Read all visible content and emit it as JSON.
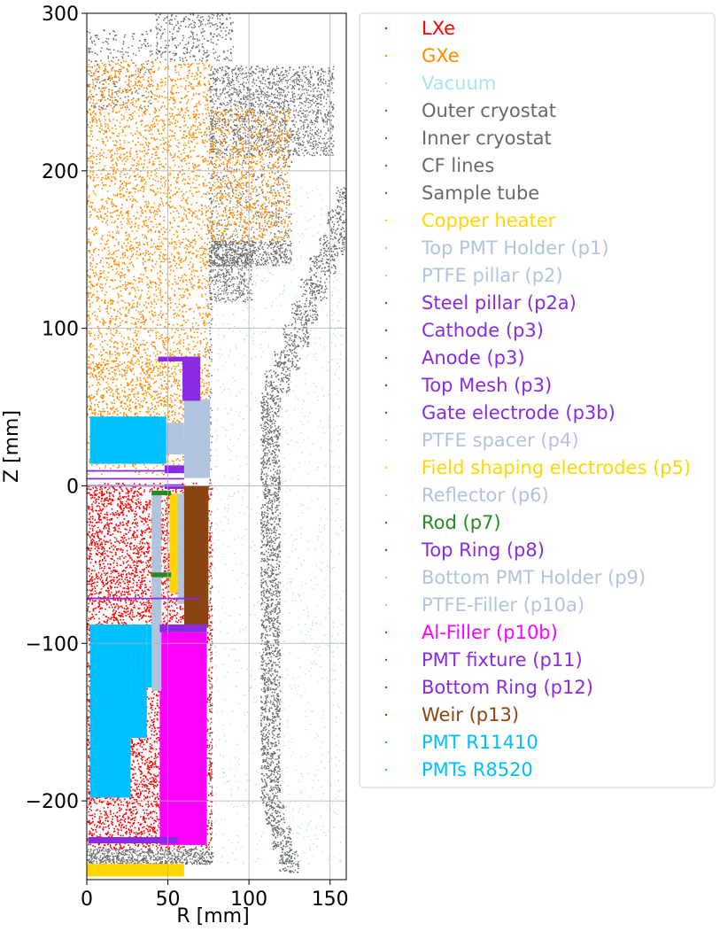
{
  "chart_data": {
    "type": "scatter",
    "title": "",
    "xlabel": "R [mm]",
    "ylabel": "Z [mm]",
    "xlim": [
      0,
      160
    ],
    "ylim": [
      -250,
      300
    ],
    "xticks": [
      0,
      50,
      100,
      150
    ],
    "yticks": [
      -200,
      -100,
      0,
      100,
      200,
      300
    ],
    "xtick_labels": [
      "0",
      "50",
      "100",
      "150"
    ],
    "ytick_labels": [
      "−200",
      "−100",
      "0",
      "100",
      "200",
      "300"
    ],
    "grid": true,
    "legend_placement": "right",
    "series": [
      {
        "name": "LXe",
        "color": "#ff0000"
      },
      {
        "name": "GXe",
        "color": "#ff8c00"
      },
      {
        "name": "Vacuum",
        "color": "#a8e4e8"
      },
      {
        "name": "Outer cryostat",
        "color": "#696969"
      },
      {
        "name": "Inner cryostat",
        "color": "#696969"
      },
      {
        "name": "CF lines",
        "color": "#696969"
      },
      {
        "name": "Sample tube",
        "color": "#696969"
      },
      {
        "name": "Copper heater",
        "color": "#ffd700"
      },
      {
        "name": "Top PMT Holder (p1)",
        "color": "#b0c4de"
      },
      {
        "name": "PTFE pillar (p2)",
        "color": "#b0c4de"
      },
      {
        "name": "Steel pillar (p2a)",
        "color": "#8a2be2"
      },
      {
        "name": "Cathode (p3)",
        "color": "#8a2be2"
      },
      {
        "name": "Anode (p3)",
        "color": "#8a2be2"
      },
      {
        "name": "Top Mesh (p3)",
        "color": "#8a2be2"
      },
      {
        "name": "Gate electrode (p3b)",
        "color": "#8a2be2"
      },
      {
        "name": "PTFE spacer (p4)",
        "color": "#b0c4de"
      },
      {
        "name": "Field shaping electrodes (p5)",
        "color": "#ffd700"
      },
      {
        "name": "Reflector (p6)",
        "color": "#b0c4de"
      },
      {
        "name": "Rod (p7)",
        "color": "#228b22"
      },
      {
        "name": "Top Ring (p8)",
        "color": "#8a2be2"
      },
      {
        "name": "Bottom PMT Holder (p9)",
        "color": "#b0c4de"
      },
      {
        "name": "PTFE-Filler (p10a)",
        "color": "#b0c4de"
      },
      {
        "name": "Al-Filler (p10b)",
        "color": "#ff00ff"
      },
      {
        "name": "PMT fixture (p11)",
        "color": "#8a2be2"
      },
      {
        "name": "Bottom Ring (p12)",
        "color": "#8a2be2"
      },
      {
        "name": "Weir (p13)",
        "color": "#8b4513"
      },
      {
        "name": "PMT R11410",
        "color": "#00bfff"
      },
      {
        "name": "PMTs R8520",
        "color": "#00bfff"
      }
    ]
  }
}
